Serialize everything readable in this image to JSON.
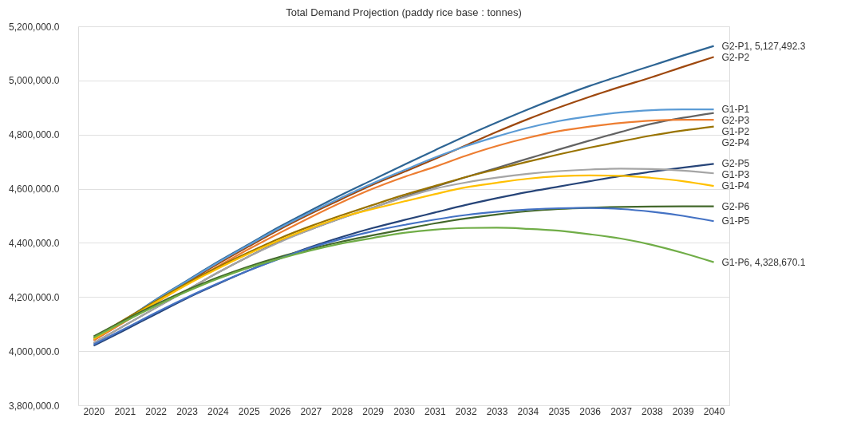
{
  "chart_data": {
    "type": "line",
    "title": "Total Demand Projection (paddy rice base : tonnes)",
    "categories": [
      "2020",
      "2021",
      "2022",
      "2023",
      "2024",
      "2025",
      "2026",
      "2027",
      "2028",
      "2029",
      "2030",
      "2031",
      "2032",
      "2033",
      "2034",
      "2035",
      "2036",
      "2037",
      "2038",
      "2039",
      "2040"
    ],
    "ylim": [
      3800000,
      5200000
    ],
    "yticks": [
      {
        "value": 3800000,
        "label": "3,800,000.0"
      },
      {
        "value": 4000000,
        "label": "4,000,000.0"
      },
      {
        "value": 4200000,
        "label": "4,200,000.0"
      },
      {
        "value": 4400000,
        "label": "4,400,000.0"
      },
      {
        "value": 4600000,
        "label": "4,600,000.0"
      },
      {
        "value": 4800000,
        "label": "4,800,000.0"
      },
      {
        "value": 5000000,
        "label": "5,000,000.0"
      },
      {
        "value": 5200000,
        "label": "5,200,000.0"
      }
    ],
    "grid": "y",
    "series": [
      {
        "name": "G2-P1,",
        "color": "#2e6594",
        "values": [
          4045000,
          4115000,
          4190000,
          4260000,
          4330000,
          4395000,
          4460000,
          4520000,
          4578000,
          4633000,
          4688000,
          4742000,
          4795000,
          4845000,
          4893000,
          4938000,
          4980000,
          5018000,
          5055000,
          5092000,
          5127492.3
        ],
        "value_labels": [
          null,
          null,
          null,
          null,
          null,
          null,
          null,
          null,
          null,
          null,
          null,
          null,
          null,
          null,
          null,
          null,
          null,
          null,
          null,
          null,
          "5,127,492.3"
        ]
      },
      {
        "name": "G2-P2",
        "color": "#9e480e",
        "values": [
          4040000,
          4110000,
          4183000,
          4253000,
          4322000,
          4387000,
          4450000,
          4508000,
          4562000,
          4615000,
          4662000,
          4710000,
          4760000,
          4810000,
          4857000,
          4900000,
          4940000,
          4977000,
          5012000,
          5050000,
          5087000
        ]
      },
      {
        "name": "G1-P1",
        "color": "#5b9bd5",
        "values": [
          4045000,
          4115000,
          4188000,
          4258000,
          4327000,
          4392000,
          4455000,
          4513000,
          4568000,
          4620000,
          4668000,
          4715000,
          4757000,
          4793000,
          4825000,
          4850000,
          4868000,
          4882000,
          4890000,
          4893000,
          4893000
        ]
      },
      {
        "name": "G2-P3",
        "color": "#636363",
        "values": [
          4030000,
          4095000,
          4160000,
          4225000,
          4290000,
          4350000,
          4405000,
          4450000,
          4492000,
          4530000,
          4570000,
          4607000,
          4643000,
          4677000,
          4711000,
          4745000,
          4778000,
          4810000,
          4840000,
          4862000,
          4880000
        ]
      },
      {
        "name": "G1-P2",
        "color": "#ed7d31",
        "values": [
          4040000,
          4108000,
          4178000,
          4247000,
          4313000,
          4377000,
          4437000,
          4495000,
          4550000,
          4600000,
          4643000,
          4681000,
          4722000,
          4758000,
          4788000,
          4813000,
          4830000,
          4843000,
          4852000,
          4855000,
          4855000
        ]
      },
      {
        "name": "G2-P4",
        "color": "#997300",
        "values": [
          4050000,
          4118000,
          4185000,
          4250000,
          4310000,
          4365000,
          4417000,
          4462000,
          4502000,
          4540000,
          4577000,
          4610000,
          4643000,
          4672000,
          4700000,
          4727000,
          4752000,
          4775000,
          4797000,
          4815000,
          4830000
        ]
      },
      {
        "name": "G2-P5",
        "color": "#264478",
        "values": [
          4020000,
          4078000,
          4137000,
          4195000,
          4248000,
          4298000,
          4343000,
          4385000,
          4422000,
          4455000,
          4484000,
          4512000,
          4540000,
          4565000,
          4588000,
          4608000,
          4628000,
          4647000,
          4663000,
          4678000,
          4692000
        ]
      },
      {
        "name": "G1-P3",
        "color": "#a5a5a5",
        "values": [
          4030000,
          4095000,
          4160000,
          4225000,
          4290000,
          4350000,
          4403000,
          4450000,
          4492000,
          4530000,
          4567000,
          4600000,
          4623000,
          4641000,
          4655000,
          4665000,
          4671000,
          4674000,
          4673000,
          4667000,
          4657000
        ]
      },
      {
        "name": "G1-P4",
        "color": "#ffc000",
        "values": [
          4045000,
          4112000,
          4180000,
          4245000,
          4305000,
          4360000,
          4410000,
          4455000,
          4495000,
          4525000,
          4553000,
          4580000,
          4605000,
          4622000,
          4637000,
          4646000,
          4649000,
          4648000,
          4640000,
          4628000,
          4610000
        ]
      },
      {
        "name": "G2-P6",
        "color": "#43682b",
        "values": [
          4055000,
          4115000,
          4172000,
          4225000,
          4272000,
          4313000,
          4348000,
          4378000,
          4405000,
          4428000,
          4450000,
          4472000,
          4490000,
          4505000,
          4517000,
          4525000,
          4530000,
          4533000,
          4534000,
          4535000,
          4535000
        ]
      },
      {
        "name": "G1-P5",
        "color": "#4472c4",
        "values": [
          4025000,
          4083000,
          4142000,
          4198000,
          4250000,
          4298000,
          4342000,
          4382000,
          4415000,
          4443000,
          4466000,
          4486000,
          4503000,
          4515000,
          4523000,
          4528000,
          4529000,
          4525000,
          4515000,
          4500000,
          4480000
        ]
      },
      {
        "name": "G1-P6,",
        "color": "#70ad47",
        "values": [
          4050000,
          4110000,
          4167000,
          4220000,
          4267000,
          4308000,
          4342000,
          4372000,
          4398000,
          4418000,
          4437000,
          4449000,
          4455000,
          4456000,
          4452000,
          4445000,
          4432000,
          4416000,
          4393000,
          4363000,
          4328670.1
        ],
        "value_labels": [
          null,
          null,
          null,
          null,
          null,
          null,
          null,
          null,
          null,
          null,
          null,
          null,
          null,
          null,
          null,
          null,
          null,
          null,
          null,
          null,
          "4,328,670.1"
        ]
      }
    ]
  }
}
